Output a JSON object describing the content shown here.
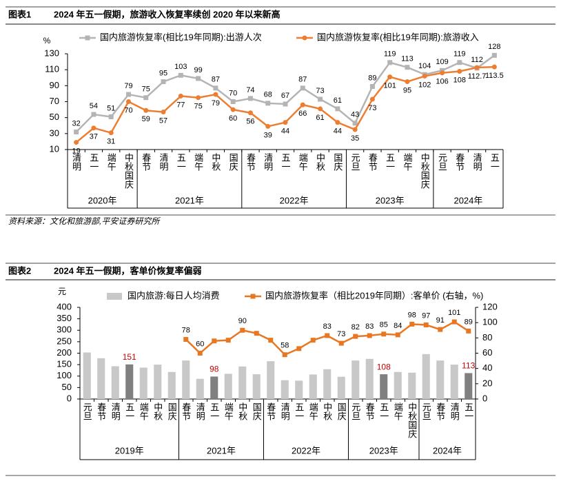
{
  "chart_data": [
    {
      "type": "line",
      "label": "图表1",
      "title": "2024 年五一假期，旅游收入恢复率续创 2020 年以来新高",
      "y_label": "%",
      "source": "资料来源：文化和旅游部,平安证券研究所",
      "groups": [
        {
          "name": "2020年",
          "categories": [
            "清明",
            "五一",
            "端午",
            "中秋国庆"
          ]
        },
        {
          "name": "2021年",
          "categories": [
            "春节",
            "清明",
            "五一",
            "端午",
            "中秋",
            "国庆"
          ]
        },
        {
          "name": "2022年",
          "categories": [
            "春节",
            "清明",
            "五一",
            "端午",
            "中秋",
            "国庆"
          ]
        },
        {
          "name": "2023年",
          "categories": [
            "元旦",
            "春节",
            "五一",
            "端午",
            "中秋国庆"
          ]
        },
        {
          "name": "2024年",
          "categories": [
            "元旦",
            "春节",
            "清明",
            "五一"
          ]
        }
      ],
      "ylim": [
        10,
        130
      ],
      "yticks": [
        10,
        30,
        50,
        70,
        90,
        110,
        130
      ],
      "series": [
        {
          "name": "国内旅游恢复率(相比19年同期):出游人次",
          "type": "line",
          "color": "#b4b4b4",
          "marker": "square",
          "values": [
            32,
            54,
            51,
            79,
            75,
            95,
            103,
            99,
            87,
            70,
            74,
            68,
            67,
            87,
            73,
            61,
            43,
            89,
            119,
            113,
            104,
            109,
            119,
            112,
            128
          ]
        },
        {
          "name": "国内旅游恢复率(相比19年同期):旅游收入",
          "type": "line",
          "color": "#ed7d31",
          "marker": "circle",
          "values": [
            19,
            37,
            31,
            70,
            59,
            57,
            77,
            75,
            79,
            60,
            56,
            39,
            44,
            66,
            61,
            44,
            35,
            73,
            101,
            95,
            102,
            106,
            108,
            112.7,
            113.5
          ]
        }
      ]
    },
    {
      "type": "combo",
      "label": "图表2",
      "title": "2024 年五一假期，客单价恢复率偏弱",
      "y_label": "元",
      "groups": [
        {
          "name": "2019年",
          "categories": [
            "元旦",
            "春节",
            "清明",
            "五一",
            "端午",
            "中秋",
            "国庆"
          ]
        },
        {
          "name": "2021年",
          "categories": [
            "春节",
            "清明",
            "五一",
            "端午",
            "中秋",
            "国庆"
          ]
        },
        {
          "name": "2022年",
          "categories": [
            "春节",
            "清明",
            "五一",
            "端午",
            "中秋",
            "国庆"
          ]
        },
        {
          "name": "2023年",
          "categories": [
            "元旦",
            "春节",
            "五一",
            "端午",
            "中秋国庆"
          ]
        },
        {
          "name": "2024年",
          "categories": [
            "元旦",
            "春节",
            "清明",
            "五一"
          ]
        }
      ],
      "ylim": [
        0,
        400
      ],
      "yticks": [
        0,
        50,
        100,
        150,
        200,
        250,
        300,
        350,
        400
      ],
      "y2lim": [
        0,
        120
      ],
      "y2ticks": [
        0,
        20,
        40,
        60,
        80,
        100,
        120
      ],
      "series": [
        {
          "name": "国内旅游:每日人均消费",
          "type": "bar",
          "color": "#c8c8c8",
          "colors": [
            "#c8c8c8",
            "#c8c8c8",
            "#c8c8c8",
            "#808080",
            "#c8c8c8",
            "#c8c8c8",
            "#c8c8c8",
            "#c8c8c8",
            "#c8c8c8",
            "#808080",
            "#c8c8c8",
            "#c8c8c8",
            "#c8c8c8",
            "#c8c8c8",
            "#c8c8c8",
            "#c8c8c8",
            "#c8c8c8",
            "#c8c8c8",
            "#c8c8c8",
            "#c8c8c8",
            "#c8c8c8",
            "#808080",
            "#c8c8c8",
            "#c8c8c8",
            "#c8c8c8",
            "#c8c8c8",
            "#c8c8c8",
            "#808080"
          ],
          "values": [
            203,
            178,
            143,
            151,
            137,
            150,
            118,
            168,
            88,
            98,
            110,
            142,
            108,
            165,
            82,
            80,
            107,
            130,
            97,
            168,
            175,
            108,
            118,
            115,
            196,
            168,
            150,
            113
          ],
          "value_labels": [
            null,
            null,
            null,
            "151",
            null,
            null,
            null,
            null,
            null,
            "98",
            null,
            null,
            null,
            null,
            null,
            null,
            null,
            null,
            null,
            null,
            null,
            "108",
            null,
            null,
            null,
            null,
            null,
            "113"
          ]
        },
        {
          "name": "国内旅游恢复率（相比2019年同期）:客单价 (右轴，%)",
          "type": "line",
          "axis": "y2",
          "color": "#e87722",
          "marker": "square",
          "values": [
            null,
            null,
            null,
            null,
            null,
            null,
            null,
            78,
            60,
            76,
            77,
            90,
            86,
            77,
            58,
            66,
            77,
            83,
            73,
            82,
            83,
            85,
            84,
            98,
            97,
            91,
            101,
            89
          ],
          "value_labels": [
            null,
            null,
            null,
            null,
            null,
            null,
            null,
            "78",
            "60",
            null,
            null,
            "90",
            null,
            null,
            "58",
            null,
            null,
            "83",
            "73",
            "82",
            "83",
            "85",
            "84",
            "98",
            "97",
            "91",
            "101",
            "89"
          ]
        }
      ]
    }
  ]
}
